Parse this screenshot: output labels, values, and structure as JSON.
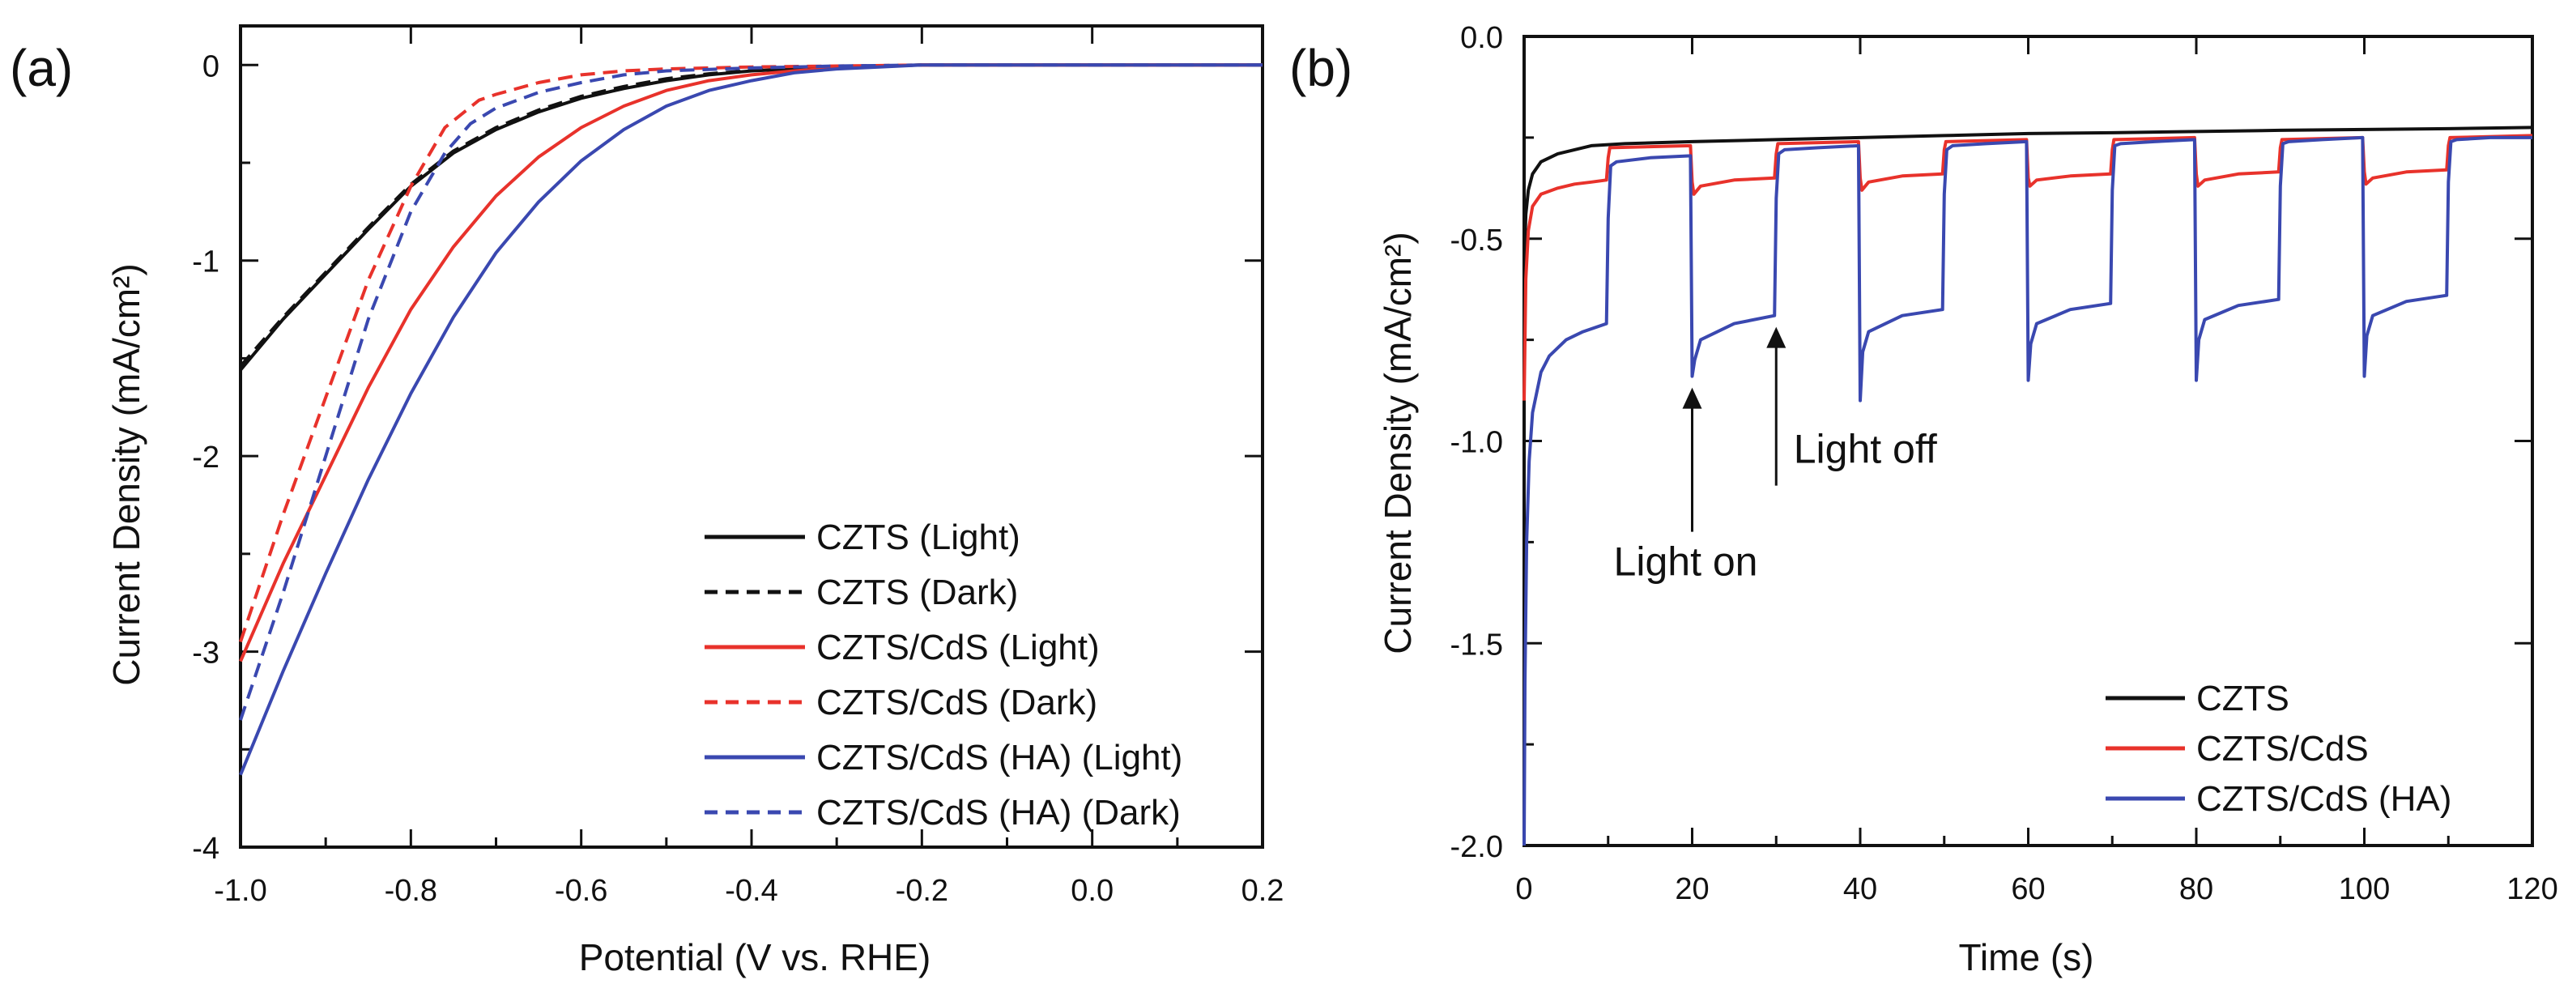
{
  "figure": {
    "panel_a": "(a)",
    "panel_b": "(b)"
  },
  "chart_data": [
    {
      "type": "line",
      "panel": "(a)",
      "title": "",
      "xlabel": "Potential (V vs. RHE)",
      "ylabel": "Current Density (mA/cm²)",
      "xlim": [
        -1.0,
        0.2
      ],
      "ylim": [
        -4,
        0.2
      ],
      "xticks": [
        -1.0,
        -0.8,
        -0.6,
        -0.4,
        -0.2,
        0.0,
        0.2
      ],
      "xtick_labels": [
        "-1.0",
        "-0.8",
        "-0.6",
        "-0.4",
        "-0.2",
        "0.0",
        "0.2"
      ],
      "yticks": [
        0,
        -1,
        -2,
        -3,
        -4
      ],
      "ytick_labels": [
        "0",
        "-1",
        "-2",
        "-3",
        "-4"
      ],
      "legend_position": "bottom-right",
      "series": [
        {
          "name": "CZTS (Light)",
          "color": "#111111",
          "dash": "solid",
          "x": [
            -1.0,
            -0.95,
            -0.9,
            -0.85,
            -0.8,
            -0.75,
            -0.7,
            -0.65,
            -0.6,
            -0.55,
            -0.5,
            -0.45,
            -0.4,
            -0.35,
            -0.3,
            -0.25,
            -0.2,
            -0.1,
            0.0,
            0.1,
            0.2
          ],
          "y": [
            -1.56,
            -1.3,
            -1.07,
            -0.84,
            -0.62,
            -0.45,
            -0.33,
            -0.24,
            -0.17,
            -0.12,
            -0.08,
            -0.05,
            -0.03,
            -0.02,
            -0.01,
            -0.005,
            0.0,
            0.0,
            0.0,
            0.0,
            0.0
          ]
        },
        {
          "name": "CZTS (Dark)",
          "color": "#111111",
          "dash": "dashed",
          "x": [
            -1.0,
            -0.95,
            -0.9,
            -0.85,
            -0.8,
            -0.75,
            -0.7,
            -0.65,
            -0.6,
            -0.55,
            -0.5,
            -0.45,
            -0.4,
            -0.35,
            -0.3,
            -0.25,
            -0.2,
            -0.1,
            0.0,
            0.1,
            0.2
          ],
          "y": [
            -1.54,
            -1.29,
            -1.06,
            -0.83,
            -0.61,
            -0.44,
            -0.32,
            -0.23,
            -0.16,
            -0.11,
            -0.07,
            -0.045,
            -0.028,
            -0.018,
            -0.01,
            -0.005,
            0.0,
            0.0,
            0.0,
            0.0,
            0.0
          ]
        },
        {
          "name": "CZTS/CdS  (Light)",
          "color": "#e8322b",
          "dash": "solid",
          "x": [
            -1.0,
            -0.95,
            -0.9,
            -0.85,
            -0.8,
            -0.75,
            -0.7,
            -0.65,
            -0.6,
            -0.55,
            -0.5,
            -0.45,
            -0.4,
            -0.35,
            -0.3,
            -0.25,
            -0.2,
            -0.1,
            0.0,
            0.1,
            0.2
          ],
          "y": [
            -3.05,
            -2.55,
            -2.1,
            -1.65,
            -1.25,
            -0.93,
            -0.67,
            -0.47,
            -0.32,
            -0.21,
            -0.13,
            -0.08,
            -0.05,
            -0.03,
            -0.015,
            -0.005,
            0.0,
            0.0,
            0.0,
            0.0,
            0.0
          ]
        },
        {
          "name": "CZTS/CdS  (Dark)",
          "color": "#e8322b",
          "dash": "dashed",
          "x": [
            -1.0,
            -0.95,
            -0.9,
            -0.85,
            -0.8,
            -0.76,
            -0.72,
            -0.7,
            -0.65,
            -0.6,
            -0.55,
            -0.5,
            -0.4,
            -0.3,
            -0.2,
            -0.1,
            0.0,
            0.1,
            0.2
          ],
          "y": [
            -2.95,
            -2.3,
            -1.7,
            -1.1,
            -0.62,
            -0.32,
            -0.18,
            -0.15,
            -0.09,
            -0.05,
            -0.03,
            -0.02,
            -0.01,
            -0.005,
            0.0,
            0.0,
            0.0,
            0.0,
            0.0
          ]
        },
        {
          "name": "CZTS/CdS (HA) (Light)",
          "color": "#3a48b0",
          "dash": "solid",
          "x": [
            -1.0,
            -0.95,
            -0.9,
            -0.85,
            -0.8,
            -0.75,
            -0.7,
            -0.65,
            -0.6,
            -0.55,
            -0.5,
            -0.45,
            -0.4,
            -0.35,
            -0.3,
            -0.25,
            -0.2,
            -0.1,
            0.0,
            0.1,
            0.2
          ],
          "y": [
            -3.63,
            -3.1,
            -2.6,
            -2.12,
            -1.68,
            -1.29,
            -0.96,
            -0.7,
            -0.49,
            -0.33,
            -0.21,
            -0.13,
            -0.08,
            -0.04,
            -0.02,
            -0.01,
            0.0,
            0.0,
            0.0,
            0.0,
            0.0
          ]
        },
        {
          "name": "CZTS/CdS (HA) (Dark)",
          "color": "#3a48b0",
          "dash": "dashed",
          "x": [
            -1.0,
            -0.95,
            -0.9,
            -0.85,
            -0.8,
            -0.76,
            -0.73,
            -0.7,
            -0.65,
            -0.6,
            -0.55,
            -0.5,
            -0.4,
            -0.3,
            -0.2,
            -0.1,
            0.0,
            0.1,
            0.2
          ],
          "y": [
            -3.35,
            -2.7,
            -2.0,
            -1.3,
            -0.75,
            -0.45,
            -0.3,
            -0.22,
            -0.14,
            -0.09,
            -0.05,
            -0.03,
            -0.015,
            -0.005,
            0.0,
            0.0,
            0.0,
            0.0,
            0.0
          ]
        }
      ]
    },
    {
      "type": "line",
      "panel": "(b)",
      "title": "",
      "xlabel": "Time (s)",
      "ylabel": "Current Density (mA/cm²)",
      "xlim": [
        0,
        120
      ],
      "ylim": [
        -2.0,
        0.0
      ],
      "xticks": [
        0,
        20,
        40,
        60,
        80,
        100,
        120
      ],
      "xtick_labels": [
        "0",
        "20",
        "40",
        "60",
        "80",
        "100",
        "120"
      ],
      "yticks": [
        0.0,
        -0.5,
        -1.0,
        -1.5,
        -2.0
      ],
      "ytick_labels": [
        "0.0",
        "-0.5",
        "-1.0",
        "-1.5",
        "-2.0"
      ],
      "legend_position": "bottom-right",
      "series": [
        {
          "name": "CZTS",
          "color": "#111111",
          "x": [
            0,
            0.2,
            0.5,
            1,
            2,
            4,
            8,
            12,
            20,
            30,
            40,
            50,
            60,
            70,
            80,
            90,
            100,
            110,
            120
          ],
          "y": [
            -0.58,
            -0.44,
            -0.38,
            -0.34,
            -0.31,
            -0.29,
            -0.27,
            -0.265,
            -0.26,
            -0.255,
            -0.25,
            -0.245,
            -0.24,
            -0.238,
            -0.235,
            -0.232,
            -0.23,
            -0.228,
            -0.225
          ]
        },
        {
          "name": "CZTS/CdS",
          "color": "#e8322b",
          "x": [
            0,
            0.2,
            0.5,
            1,
            2,
            4,
            6,
            8,
            9.8,
            10,
            10.2,
            19.8,
            20,
            20.2,
            21,
            25,
            29.8,
            30,
            30.2,
            39.8,
            40,
            40.2,
            41,
            45,
            49.8,
            50,
            50.2,
            59.8,
            60,
            60.2,
            61,
            65,
            69.8,
            70,
            70.2,
            79.8,
            80,
            80.2,
            81,
            85,
            89.8,
            90,
            90.2,
            99.8,
            100,
            100.2,
            101,
            105,
            109.8,
            110,
            110.2,
            120
          ],
          "y": [
            -0.9,
            -0.6,
            -0.48,
            -0.42,
            -0.39,
            -0.375,
            -0.365,
            -0.36,
            -0.355,
            -0.3,
            -0.275,
            -0.27,
            -0.36,
            -0.39,
            -0.37,
            -0.355,
            -0.35,
            -0.29,
            -0.265,
            -0.26,
            -0.35,
            -0.38,
            -0.36,
            -0.345,
            -0.34,
            -0.28,
            -0.26,
            -0.255,
            -0.35,
            -0.37,
            -0.355,
            -0.345,
            -0.34,
            -0.28,
            -0.255,
            -0.25,
            -0.34,
            -0.37,
            -0.355,
            -0.34,
            -0.335,
            -0.275,
            -0.255,
            -0.25,
            -0.335,
            -0.365,
            -0.35,
            -0.335,
            -0.33,
            -0.27,
            -0.25,
            -0.245
          ]
        },
        {
          "name": "CZTS/CdS (HA)",
          "color": "#3a48b0",
          "x": [
            0,
            0.1,
            0.3,
            0.6,
            1,
            2,
            3,
            5,
            7,
            9.8,
            10,
            10.3,
            11,
            15,
            19.8,
            20,
            20.3,
            21,
            25,
            29.8,
            30,
            30.3,
            31,
            35,
            39.8,
            40,
            40.3,
            41,
            45,
            49.8,
            50,
            50.3,
            51,
            55,
            59.8,
            60,
            60.3,
            61,
            65,
            69.8,
            70,
            70.3,
            71,
            75,
            79.8,
            80,
            80.3,
            81,
            85,
            89.8,
            90,
            90.3,
            91,
            95,
            99.8,
            100,
            100.3,
            101,
            105,
            109.8,
            110,
            110.3,
            111,
            115,
            120
          ],
          "y": [
            -2.0,
            -1.6,
            -1.25,
            -1.05,
            -0.93,
            -0.83,
            -0.79,
            -0.75,
            -0.73,
            -0.71,
            -0.45,
            -0.32,
            -0.31,
            -0.3,
            -0.295,
            -0.84,
            -0.8,
            -0.75,
            -0.71,
            -0.69,
            -0.4,
            -0.29,
            -0.28,
            -0.275,
            -0.27,
            -0.9,
            -0.78,
            -0.73,
            -0.69,
            -0.675,
            -0.39,
            -0.28,
            -0.27,
            -0.265,
            -0.26,
            -0.85,
            -0.76,
            -0.71,
            -0.675,
            -0.66,
            -0.38,
            -0.27,
            -0.265,
            -0.26,
            -0.255,
            -0.85,
            -0.75,
            -0.7,
            -0.665,
            -0.65,
            -0.37,
            -0.265,
            -0.26,
            -0.255,
            -0.25,
            -0.84,
            -0.74,
            -0.69,
            -0.655,
            -0.64,
            -0.36,
            -0.26,
            -0.255,
            -0.25,
            -0.25
          ]
        }
      ],
      "annotations": [
        {
          "text": "Light on",
          "x": 20,
          "y": -0.84
        },
        {
          "text": "Light off",
          "x": 30,
          "y": -0.69
        }
      ]
    }
  ]
}
